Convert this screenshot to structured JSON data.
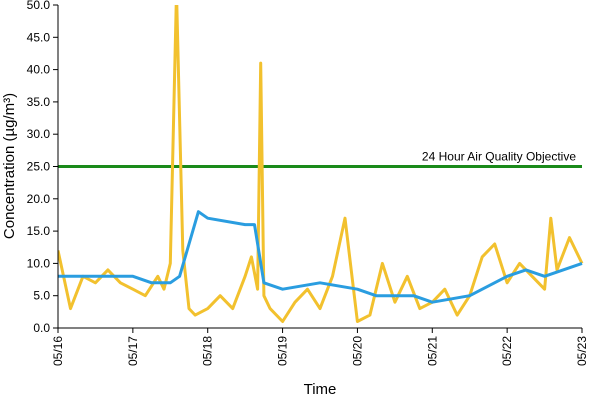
{
  "chart_data": {
    "type": "line",
    "title": "",
    "xlabel": "Time",
    "ylabel": "Concentration (µg/m³)",
    "ylim": [
      0,
      50
    ],
    "yticks": [
      "0.0",
      "5.0",
      "10.0",
      "15.0",
      "20.0",
      "25.0",
      "30.0",
      "35.0",
      "40.0",
      "45.0",
      "50.0"
    ],
    "xlim": [
      "05/16",
      "05/23"
    ],
    "xticks": [
      "05/16",
      "05/17",
      "05/18",
      "05/19",
      "05/20",
      "05/21",
      "05/22",
      "05/23"
    ],
    "grid": false,
    "legend": "none",
    "objective": {
      "label": "24 Hour Air Quality Objective",
      "value": 25,
      "color": "#1a8a1a"
    },
    "series": [
      {
        "color": "#f2c12e",
        "x": [
          "05/16",
          "05/16 04:00",
          "05/16 08:00",
          "05/16 12:00",
          "05/16 16:00",
          "05/16 20:00",
          "05/17",
          "05/17 04:00",
          "05/17 08:00",
          "05/17 10:00",
          "05/17 12:00",
          "05/17 14:00",
          "05/17 16:00",
          "05/17 18:00",
          "05/17 20:00",
          "05/18",
          "05/18 04:00",
          "05/18 08:00",
          "05/18 12:00",
          "05/18 14:00",
          "05/18 16:00",
          "05/18 17:00",
          "05/18 18:00",
          "05/18 20:00",
          "05/19",
          "05/19 04:00",
          "05/19 08:00",
          "05/19 12:00",
          "05/19 16:00",
          "05/19 20:00",
          "05/20",
          "05/20 04:00",
          "05/20 08:00",
          "05/20 12:00",
          "05/20 16:00",
          "05/20 20:00",
          "05/21",
          "05/21 04:00",
          "05/21 08:00",
          "05/21 12:00",
          "05/21 16:00",
          "05/21 20:00",
          "05/22",
          "05/22 04:00",
          "05/22 08:00",
          "05/22 12:00",
          "05/22 14:00",
          "05/22 16:00",
          "05/22 20:00",
          "05/23"
        ],
        "values": [
          12,
          3,
          8,
          7,
          9,
          7,
          6,
          5,
          8,
          6,
          10,
          52,
          12,
          3,
          2,
          3,
          5,
          3,
          8,
          11,
          6,
          41,
          5,
          3,
          1,
          4,
          6,
          3,
          8,
          17,
          1,
          2,
          10,
          4,
          8,
          3,
          4,
          6,
          2,
          5,
          11,
          13,
          7,
          10,
          8,
          6,
          17,
          9,
          14,
          10
        ]
      },
      {
        "color": "#2a9de0",
        "x": [
          "05/16",
          "05/16 12:00",
          "05/17",
          "05/17 06:00",
          "05/17 12:00",
          "05/17 15:00",
          "05/17 18:00",
          "05/17 21:00",
          "05/18",
          "05/18 12:00",
          "05/18 15:00",
          "05/18 18:00",
          "05/19",
          "05/19 12:00",
          "05/20",
          "05/20 06:00",
          "05/20 18:00",
          "05/21",
          "05/21 12:00",
          "05/22",
          "05/22 06:00",
          "05/22 12:00",
          "05/23"
        ],
        "values": [
          8,
          8,
          8,
          7,
          7,
          8,
          13,
          18,
          17,
          16,
          16,
          7,
          6,
          7,
          6,
          5,
          5,
          4,
          5,
          8,
          9,
          8,
          10
        ]
      }
    ]
  }
}
